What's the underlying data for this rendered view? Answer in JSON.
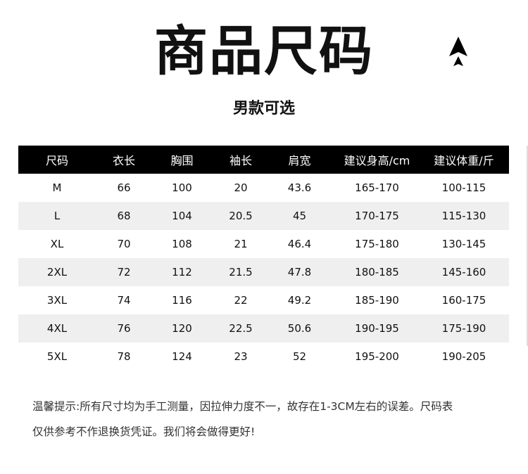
{
  "header": {
    "title": "商品尺码",
    "subtitle": "男款可选",
    "logo_icon": "double-arrow-up-icon"
  },
  "table": {
    "columns": [
      "尺码",
      "衣长",
      "胸围",
      "袖长",
      "肩宽",
      "建议身高/cm",
      "建议体重/斤"
    ],
    "rows": [
      [
        "M",
        "66",
        "100",
        "20",
        "43.6",
        "165-170",
        "100-115"
      ],
      [
        "L",
        "68",
        "104",
        "20.5",
        "45",
        "170-175",
        "115-130"
      ],
      [
        "XL",
        "70",
        "108",
        "21",
        "46.4",
        "175-180",
        "130-145"
      ],
      [
        "2XL",
        "72",
        "112",
        "21.5",
        "47.8",
        "180-185",
        "145-160"
      ],
      [
        "3XL",
        "74",
        "116",
        "22",
        "49.2",
        "185-190",
        "160-175"
      ],
      [
        "4XL",
        "76",
        "120",
        "22.5",
        "50.6",
        "190-195",
        "175-190"
      ],
      [
        "5XL",
        "78",
        "124",
        "23",
        "52",
        "195-200",
        "190-205"
      ]
    ]
  },
  "note": {
    "line1": "温馨提示:所有尺寸均为手工测量，因拉伸力度不一，故存在1-3CM左右的误差。尺码表",
    "line2": "仅供参考不作退换货凭证。我们将会做得更好!"
  }
}
